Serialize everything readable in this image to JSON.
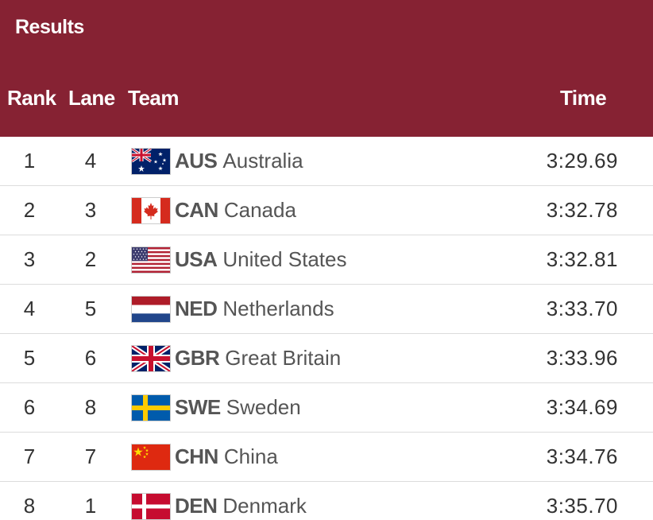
{
  "header": {
    "title": "Results",
    "columns": {
      "rank": "Rank",
      "lane": "Lane",
      "team": "Team",
      "time": "Time"
    }
  },
  "rows": [
    {
      "rank": "1",
      "lane": "4",
      "code": "AUS",
      "country": "Australia",
      "time": "3:29.69",
      "flag_icon": "australia-flag-icon"
    },
    {
      "rank": "2",
      "lane": "3",
      "code": "CAN",
      "country": "Canada",
      "time": "3:32.78",
      "flag_icon": "canada-flag-icon"
    },
    {
      "rank": "3",
      "lane": "2",
      "code": "USA",
      "country": "United States",
      "time": "3:32.81",
      "flag_icon": "usa-flag-icon"
    },
    {
      "rank": "4",
      "lane": "5",
      "code": "NED",
      "country": "Netherlands",
      "time": "3:33.70",
      "flag_icon": "netherlands-flag-icon"
    },
    {
      "rank": "5",
      "lane": "6",
      "code": "GBR",
      "country": "Great Britain",
      "time": "3:33.96",
      "flag_icon": "great-britain-flag-icon"
    },
    {
      "rank": "6",
      "lane": "8",
      "code": "SWE",
      "country": "Sweden",
      "time": "3:34.69",
      "flag_icon": "sweden-flag-icon"
    },
    {
      "rank": "7",
      "lane": "7",
      "code": "CHN",
      "country": "China",
      "time": "3:34.76",
      "flag_icon": "china-flag-icon"
    },
    {
      "rank": "8",
      "lane": "1",
      "code": "DEN",
      "country": "Denmark",
      "time": "3:35.70",
      "flag_icon": "denmark-flag-icon"
    }
  ],
  "colors": {
    "header_background": "#862233",
    "header_text": "#ffffff",
    "row_text": "#333333",
    "divider": "#dcdcdc"
  }
}
